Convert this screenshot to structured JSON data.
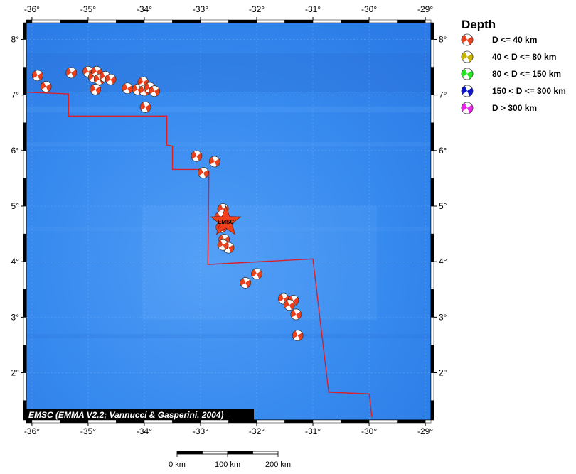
{
  "map": {
    "lon_range": [
      -36.1,
      -28.9
    ],
    "lat_range": [
      1.15,
      8.3
    ],
    "x_ticks": [
      {
        "value": -36,
        "label": "-36°"
      },
      {
        "value": -35,
        "label": "-35°"
      },
      {
        "value": -34,
        "label": "-34°"
      },
      {
        "value": -33,
        "label": "-33°"
      },
      {
        "value": -32,
        "label": "-32°"
      },
      {
        "value": -31,
        "label": "-31°"
      },
      {
        "value": -30,
        "label": "-30°"
      },
      {
        "value": -29,
        "label": "-29°"
      }
    ],
    "y_ticks": [
      {
        "value": 8,
        "label": "8°"
      },
      {
        "value": 7,
        "label": "7°"
      },
      {
        "value": 6,
        "label": "6°"
      },
      {
        "value": 5,
        "label": "5°"
      },
      {
        "value": 4,
        "label": "4°"
      },
      {
        "value": 3,
        "label": "3°"
      },
      {
        "value": 2,
        "label": "2°"
      }
    ],
    "ocean_color": "#3a8cf0",
    "boundary_color": "#d8202a",
    "boundary": [
      [
        -36.1,
        7.05
      ],
      [
        -35.35,
        7.02
      ],
      [
        -35.35,
        6.62
      ],
      [
        -33.6,
        6.62
      ],
      [
        -33.6,
        6.1
      ],
      [
        -33.5,
        6.08
      ],
      [
        -33.5,
        5.66
      ],
      [
        -33.0,
        5.66
      ],
      [
        -32.85,
        5.63
      ],
      [
        -32.87,
        3.95
      ],
      [
        -31.0,
        4.05
      ],
      [
        -30.72,
        1.65
      ],
      [
        -30.0,
        1.62
      ],
      [
        -29.95,
        1.2
      ]
    ],
    "events": [
      {
        "lon": -35.9,
        "lat": 7.35
      },
      {
        "lon": -35.75,
        "lat": 7.15
      },
      {
        "lon": -35.3,
        "lat": 7.4
      },
      {
        "lon": -35.0,
        "lat": 7.42
      },
      {
        "lon": -34.9,
        "lat": 7.32
      },
      {
        "lon": -34.85,
        "lat": 7.42
      },
      {
        "lon": -34.8,
        "lat": 7.28
      },
      {
        "lon": -34.7,
        "lat": 7.33
      },
      {
        "lon": -34.6,
        "lat": 7.28
      },
      {
        "lon": -34.87,
        "lat": 7.1
      },
      {
        "lon": -34.3,
        "lat": 7.12
      },
      {
        "lon": -34.12,
        "lat": 7.1
      },
      {
        "lon": -34.02,
        "lat": 7.23
      },
      {
        "lon": -34.0,
        "lat": 7.08
      },
      {
        "lon": -33.9,
        "lat": 7.13
      },
      {
        "lon": -33.82,
        "lat": 7.07
      },
      {
        "lon": -33.98,
        "lat": 6.78
      },
      {
        "lon": -33.07,
        "lat": 5.9
      },
      {
        "lon": -32.75,
        "lat": 5.8
      },
      {
        "lon": -32.95,
        "lat": 5.6
      },
      {
        "lon": -32.6,
        "lat": 4.95
      },
      {
        "lon": -32.65,
        "lat": 4.8
      },
      {
        "lon": -32.55,
        "lat": 4.7
      },
      {
        "lon": -32.63,
        "lat": 4.62
      },
      {
        "lon": -32.58,
        "lat": 4.4
      },
      {
        "lon": -32.5,
        "lat": 4.25
      },
      {
        "lon": -32.6,
        "lat": 4.3
      },
      {
        "lon": -32.0,
        "lat": 3.78
      },
      {
        "lon": -32.2,
        "lat": 3.62
      },
      {
        "lon": -31.52,
        "lat": 3.33
      },
      {
        "lon": -31.35,
        "lat": 3.3
      },
      {
        "lon": -31.42,
        "lat": 3.22
      },
      {
        "lon": -31.3,
        "lat": 3.05
      },
      {
        "lon": -31.27,
        "lat": 2.67
      }
    ],
    "star": {
      "lon": -32.55,
      "lat": 4.72,
      "label": "EMSC",
      "color": "#f0401a"
    },
    "credit": "EMSC (EMMA V2.2; Vannucci & Gasperini, 2004)"
  },
  "legend": {
    "title": "Depth",
    "items": [
      {
        "label": "D <= 40 km",
        "color": "#e8401c"
      },
      {
        "label": "40 < D <= 80 km",
        "color": "#c8b400"
      },
      {
        "label": "80 < D <= 150 km",
        "color": "#22e222"
      },
      {
        "label": "150 < D <= 300 km",
        "color": "#0a14c8"
      },
      {
        "label": "D > 300 km",
        "color": "#e622e6"
      }
    ]
  },
  "scale_bar": {
    "labels": [
      "0 km",
      "100 km",
      "200 km"
    ],
    "max_km": 200
  }
}
